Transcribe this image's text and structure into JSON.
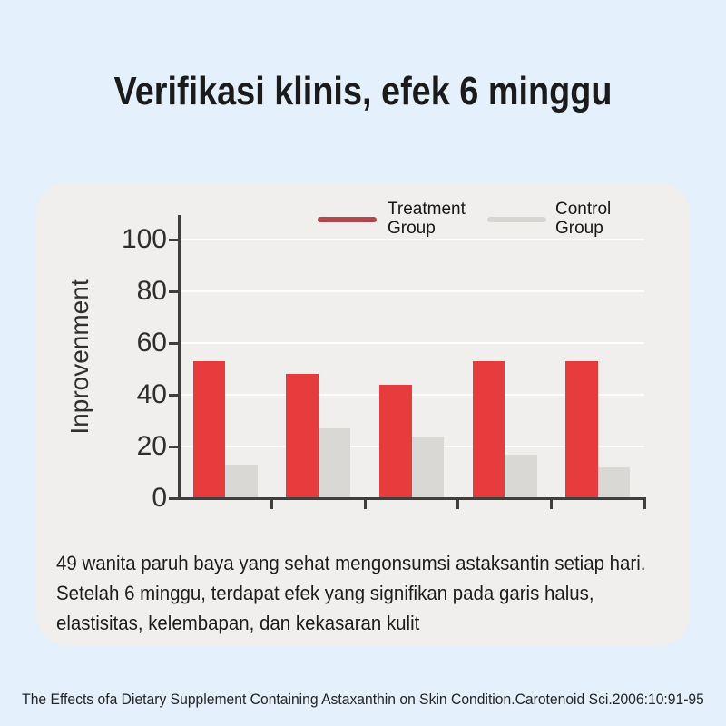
{
  "page": {
    "title": "Verifikasi klinis, efek 6 minggu",
    "background_color": "#e4f1fd",
    "panel_color": "#f0efed"
  },
  "description": {
    "lines": [
      "49 wanita paruh baya yang sehat mengonsumsi astaksantin setiap hari.",
      "Setelah 6 minggu, terdapat efek yang signifikan pada garis halus,",
      "elastisitas, kelembapan, dan kekasaran kulit"
    ]
  },
  "citation": "The Effects ofa Dietary Supplement Containing Astaxanthin on Skin Condition.Carotenoid Sci.2006:10:91-95",
  "chart_data": {
    "type": "bar",
    "title": "",
    "xlabel": "",
    "ylabel": "Inprovenment",
    "ylim": [
      0,
      107
    ],
    "yticks": [
      0,
      20,
      40,
      60,
      80,
      100
    ],
    "grid": true,
    "legend_position": "top",
    "categories": [
      "",
      "",
      "",
      "",
      ""
    ],
    "series": [
      {
        "name": "Treatment Group",
        "color": "#e73c3e",
        "legend_color": "#b24950",
        "values": [
          53,
          48,
          44,
          53,
          53
        ]
      },
      {
        "name": "Control Group",
        "color": "#d9d8d5",
        "legend_color": "#d6d5d2",
        "values": [
          13,
          27,
          24,
          17,
          12
        ]
      }
    ]
  }
}
